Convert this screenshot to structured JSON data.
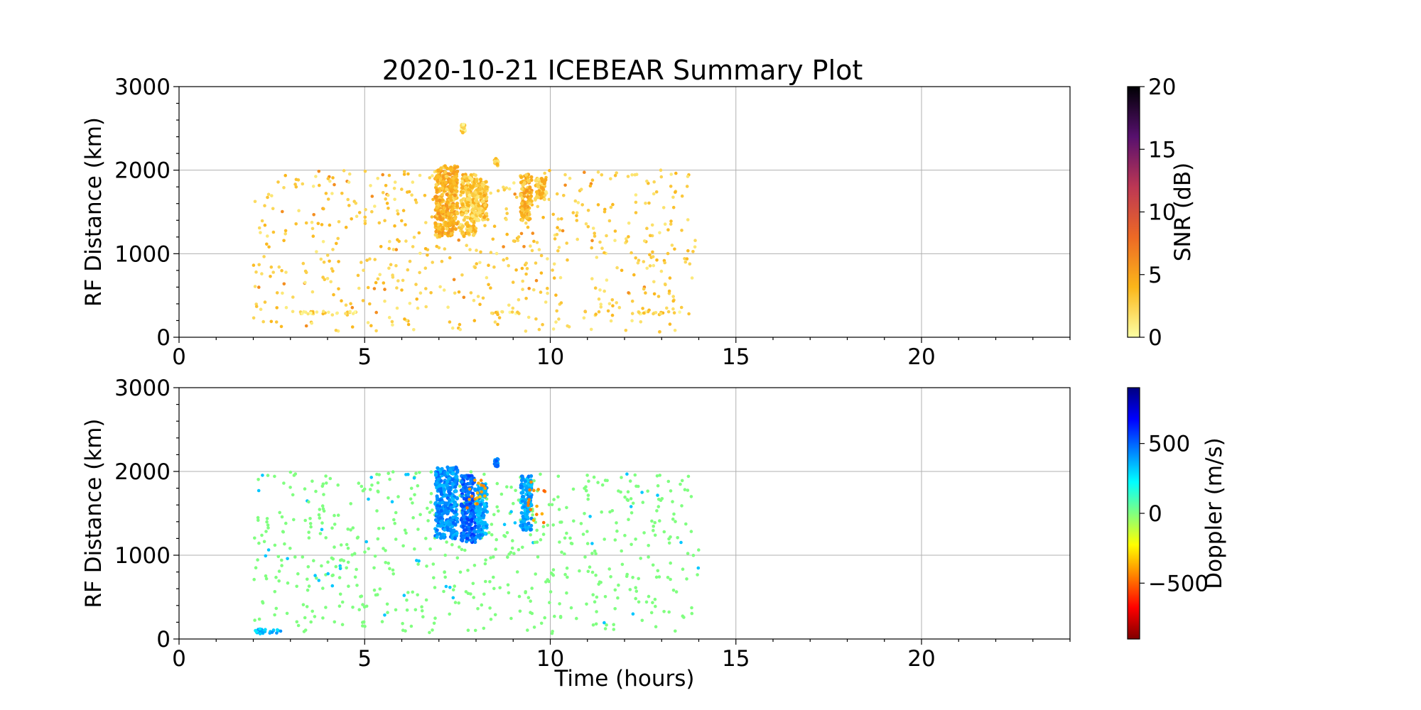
{
  "figure": {
    "title": "2020-10-21 ICEBEAR Summary Plot"
  },
  "chart_data": [
    {
      "type": "scatter",
      "title": "2020-10-21 ICEBEAR Summary Plot",
      "xlabel": "",
      "ylabel": "RF Distance (km)",
      "xlim": [
        0,
        24
      ],
      "ylim": [
        0,
        3000
      ],
      "x_ticks": [
        0,
        5,
        10,
        15,
        20
      ],
      "y_ticks": [
        0,
        1000,
        2000,
        3000
      ],
      "grid": true,
      "color_by": "SNR (dB)",
      "colorbar": {
        "label": "SNR (dB)",
        "range": [
          0,
          20
        ],
        "ticks": [
          0,
          5,
          10,
          15,
          20
        ],
        "colormap": [
          "#fcffa4",
          "#fbb61a",
          "#ed6925",
          "#bc3754",
          "#57106e",
          "#000004"
        ],
        "colormap_stops_note": "plasma_r"
      },
      "clusters": [
        {
          "x": [
            2.0,
            14.0
          ],
          "y": [
            50,
            2000
          ],
          "value": 2.5,
          "density": "scattered"
        },
        {
          "x": [
            6.9,
            7.5
          ],
          "y": [
            1200,
            2050
          ],
          "value": 4.0,
          "density": "dense"
        },
        {
          "x": [
            7.6,
            8.0
          ],
          "y": [
            1200,
            1950
          ],
          "value": 3.0,
          "density": "dense"
        },
        {
          "x": [
            8.0,
            8.3
          ],
          "y": [
            1400,
            1900
          ],
          "value": 3.0,
          "density": "dense"
        },
        {
          "x": [
            9.2,
            9.5
          ],
          "y": [
            1400,
            1950
          ],
          "value": 4.0,
          "density": "dense"
        },
        {
          "x": [
            9.6,
            9.9
          ],
          "y": [
            1650,
            1900
          ],
          "value": 3.0,
          "density": "dense"
        },
        {
          "x": [
            8.5,
            8.6
          ],
          "y": [
            2050,
            2150
          ],
          "value": 2.0,
          "density": "dense"
        },
        {
          "x": [
            7.6,
            7.7
          ],
          "y": [
            2450,
            2550
          ],
          "value": 2.0,
          "density": "dense"
        },
        {
          "x": [
            3.2,
            5.0
          ],
          "y": [
            280,
            310
          ],
          "value": 2.0,
          "density": "line"
        },
        {
          "x": [
            8.4,
            9.2
          ],
          "y": [
            280,
            310
          ],
          "value": 2.0,
          "density": "line"
        },
        {
          "x": [
            12.3,
            13.5
          ],
          "y": [
            280,
            310
          ],
          "value": 2.0,
          "density": "line"
        }
      ]
    },
    {
      "type": "scatter",
      "xlabel": "Time (hours)",
      "ylabel": "RF Distance (km)",
      "xlim": [
        0,
        24
      ],
      "ylim": [
        0,
        3000
      ],
      "x_ticks": [
        0,
        5,
        10,
        15,
        20
      ],
      "y_ticks": [
        0,
        1000,
        2000,
        3000
      ],
      "grid": true,
      "color_by": "Doppler (m/s)",
      "colorbar": {
        "label": "Doppler (m/s)",
        "range": [
          -900,
          900
        ],
        "ticks": [
          -500,
          0,
          500
        ],
        "tick_labels": [
          "−500",
          "0",
          "500"
        ],
        "colormap": [
          "#800000",
          "#ff0000",
          "#ff8000",
          "#ffff00",
          "#80ff80",
          "#00ffff",
          "#0080ff",
          "#0000ff",
          "#000080"
        ],
        "colormap_stops_note": "jet_r"
      },
      "clusters": [
        {
          "x": [
            2.0,
            14.0
          ],
          "y": [
            50,
            2000
          ],
          "value": 0,
          "density": "scattered"
        },
        {
          "x": [
            6.9,
            7.5
          ],
          "y": [
            1200,
            2050
          ],
          "value": 420,
          "density": "dense"
        },
        {
          "x": [
            7.6,
            8.0
          ],
          "y": [
            1150,
            1950
          ],
          "value": 500,
          "density": "dense"
        },
        {
          "x": [
            8.0,
            8.3
          ],
          "y": [
            1200,
            1850
          ],
          "value": 380,
          "density": "dense"
        },
        {
          "x": [
            7.7,
            8.3
          ],
          "y": [
            1550,
            1900
          ],
          "value": -380,
          "density": "sparse"
        },
        {
          "x": [
            9.2,
            9.5
          ],
          "y": [
            1300,
            1950
          ],
          "value": 380,
          "density": "dense"
        },
        {
          "x": [
            9.4,
            9.9
          ],
          "y": [
            1350,
            1900
          ],
          "value": -420,
          "density": "sparse"
        },
        {
          "x": [
            8.5,
            8.6
          ],
          "y": [
            2050,
            2150
          ],
          "value": 450,
          "density": "dense"
        },
        {
          "x": [
            2.0,
            2.8
          ],
          "y": [
            60,
            120
          ],
          "value": 350,
          "density": "sparse"
        }
      ]
    }
  ]
}
